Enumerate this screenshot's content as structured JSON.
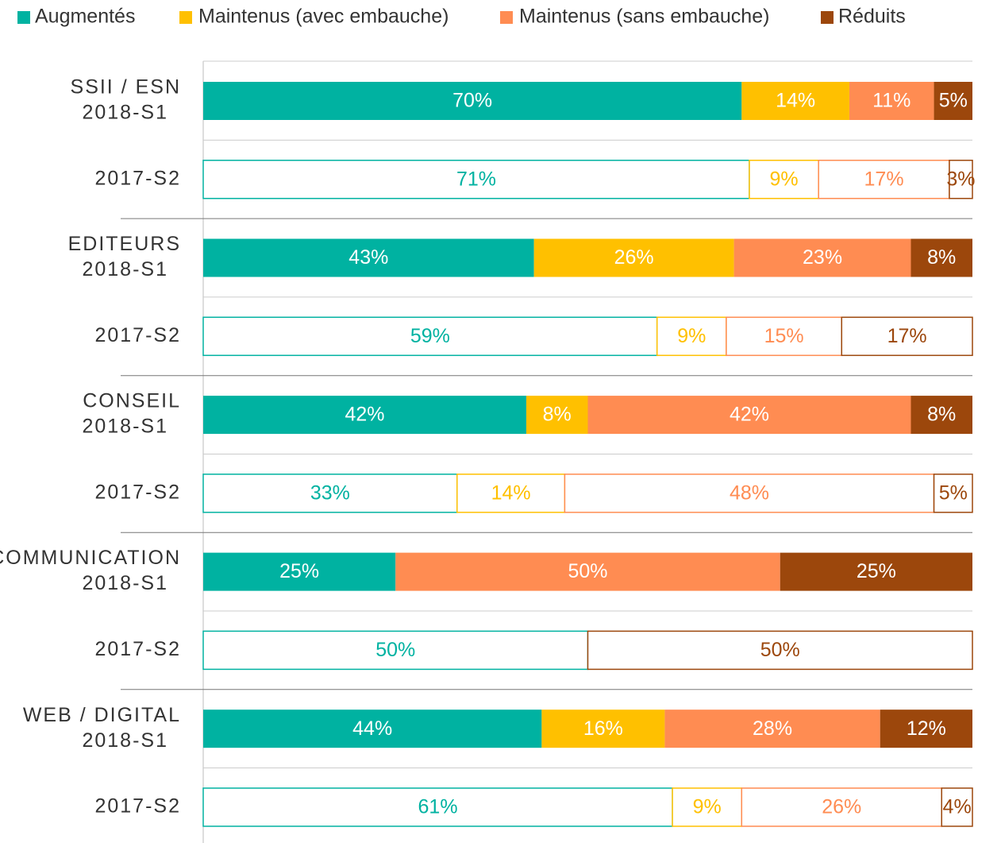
{
  "chart_data": {
    "type": "stacked-bar",
    "orientation": "horizontal",
    "groups": [
      "SSII / ESN",
      null,
      "EDITEURS",
      null,
      "CONSEIL",
      null,
      "COMMUNICATION",
      null,
      "WEB / DIGITAL",
      null
    ],
    "categories": [
      "2018-S1",
      "2017-S2",
      "2018-S1",
      "2017-S2",
      "2018-S1",
      "2017-S2",
      "2018-S1",
      "2017-S2",
      "2018-S1",
      "2017-S2"
    ],
    "xlim": [
      0,
      100
    ],
    "legend": "top",
    "series": [
      {
        "name": "Augmentés",
        "color": "#00b2a1",
        "values": [
          70,
          71,
          43,
          59,
          42,
          33,
          25,
          50,
          44,
          61
        ],
        "value_labels": [
          "70%",
          "71%",
          "43%",
          "59%",
          "42%",
          "33%",
          "25%",
          "50%",
          "44%",
          "61%"
        ]
      },
      {
        "name": "Maintenus (avec embauche)",
        "color": "#ffc000",
        "values": [
          14,
          9,
          26,
          9,
          8,
          14,
          0,
          0,
          16,
          9
        ],
        "value_labels": [
          "14%",
          "9%",
          "26%",
          "9%",
          "8%",
          "14%",
          null,
          null,
          "16%",
          "9%"
        ]
      },
      {
        "name": "Maintenus (sans embauche)",
        "color": "#ff8c52",
        "values": [
          11,
          17,
          23,
          15,
          42,
          48,
          50,
          0,
          28,
          26
        ],
        "value_labels": [
          "11%",
          "17%",
          "23%",
          "15%",
          "42%",
          "48%",
          "50%",
          null,
          "28%",
          "26%"
        ]
      },
      {
        "name": "Réduits",
        "color": "#9c470c",
        "values": [
          5,
          3,
          8,
          17,
          8,
          5,
          25,
          50,
          12,
          4
        ],
        "value_labels": [
          "5%",
          "3%",
          "8%",
          "17%",
          "8%",
          "5%",
          "25%",
          "50%",
          "12%",
          "4%"
        ]
      }
    ]
  }
}
